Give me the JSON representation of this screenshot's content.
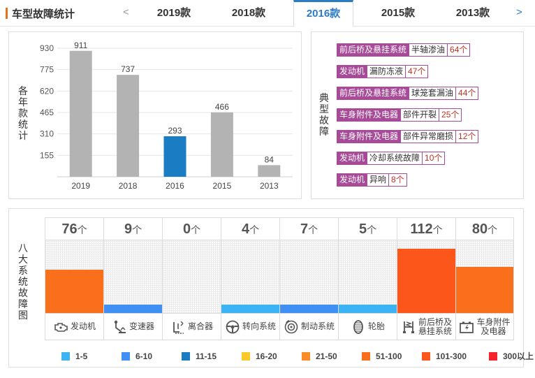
{
  "header": {
    "title": "车型故障统计",
    "prev_arrow": "<",
    "next_arrow": ">",
    "tabs": [
      {
        "label": "2019款"
      },
      {
        "label": "2018款"
      },
      {
        "label": "2016款"
      },
      {
        "label": "2015款"
      },
      {
        "label": "2013款"
      }
    ],
    "active_tab": "2016款"
  },
  "chart_panel": {
    "ylabel": "各年款统计"
  },
  "chart_data": {
    "type": "bar",
    "title": "",
    "xlabel": "",
    "ylabel": "各年款统计",
    "categories": [
      "2019",
      "2018",
      "2016",
      "2015",
      "2013"
    ],
    "values": [
      911,
      737,
      293,
      466,
      84
    ],
    "highlight": "2016",
    "yticks": [
      155,
      310,
      465,
      620,
      775,
      930
    ],
    "ylim": [
      0,
      930
    ],
    "colors": {
      "normal": "#b3b3b3",
      "highlight": "#1a7cc2"
    },
    "grid": true
  },
  "faults_panel": {
    "label": "典型故障",
    "items": [
      {
        "category": "前后桥及悬挂系统",
        "name": "半轴渗油",
        "count": "64个"
      },
      {
        "category": "发动机",
        "name": "漏防冻液",
        "count": "47个"
      },
      {
        "category": "前后桥及悬挂系统",
        "name": "球笼套漏油",
        "count": "44个"
      },
      {
        "category": "车身附件及电器",
        "name": "部件开裂",
        "count": "25个"
      },
      {
        "category": "车身附件及电器",
        "name": "部件异常磨损",
        "count": "12个"
      },
      {
        "category": "发动机",
        "name": "冷却系统故障",
        "count": "10个"
      },
      {
        "category": "发动机",
        "name": "异响",
        "count": "8个"
      }
    ]
  },
  "systems_panel": {
    "label": "八大系统故障图",
    "unit": "个",
    "systems": [
      {
        "name": "发动机",
        "count": 76,
        "color": "#fa6f1b",
        "icon": "engine-icon"
      },
      {
        "name": "变速器",
        "count": 9,
        "color": "#3f8ff5",
        "icon": "gear-shift-icon"
      },
      {
        "name": "离合器",
        "count": 0,
        "color": "#38b2ef",
        "icon": "clutch-icon"
      },
      {
        "name": "转向系统",
        "count": 4,
        "color": "#3cb4f4",
        "icon": "steering-wheel-icon"
      },
      {
        "name": "制动系统",
        "count": 7,
        "color": "#3f8ff5",
        "icon": "brake-icon"
      },
      {
        "name": "轮胎",
        "count": 5,
        "color": "#3cb4f4",
        "icon": "tire-icon"
      },
      {
        "name": "前后桥及悬挂系统",
        "label_lines": [
          "前后桥及",
          "悬挂系统"
        ],
        "count": 112,
        "color": "#fd561a",
        "icon": "suspension-icon"
      },
      {
        "name": "车身附件及电器",
        "label_lines": [
          "车身附件",
          "及电器"
        ],
        "count": 80,
        "color": "#fa6f1b",
        "icon": "battery-icon"
      }
    ],
    "legend": [
      {
        "label": "1-5",
        "color": "#3cb4f4"
      },
      {
        "label": "6-10",
        "color": "#3f8ff5"
      },
      {
        "label": "11-15",
        "color": "#1a7cc2"
      },
      {
        "label": "16-20",
        "color": "#fcc82c"
      },
      {
        "label": "21-50",
        "color": "#fb8c25"
      },
      {
        "label": "51-100",
        "color": "#fa6f1b"
      },
      {
        "label": "101-300",
        "color": "#fd561a"
      },
      {
        "label": "300以上",
        "color": "#f5232b"
      }
    ]
  }
}
